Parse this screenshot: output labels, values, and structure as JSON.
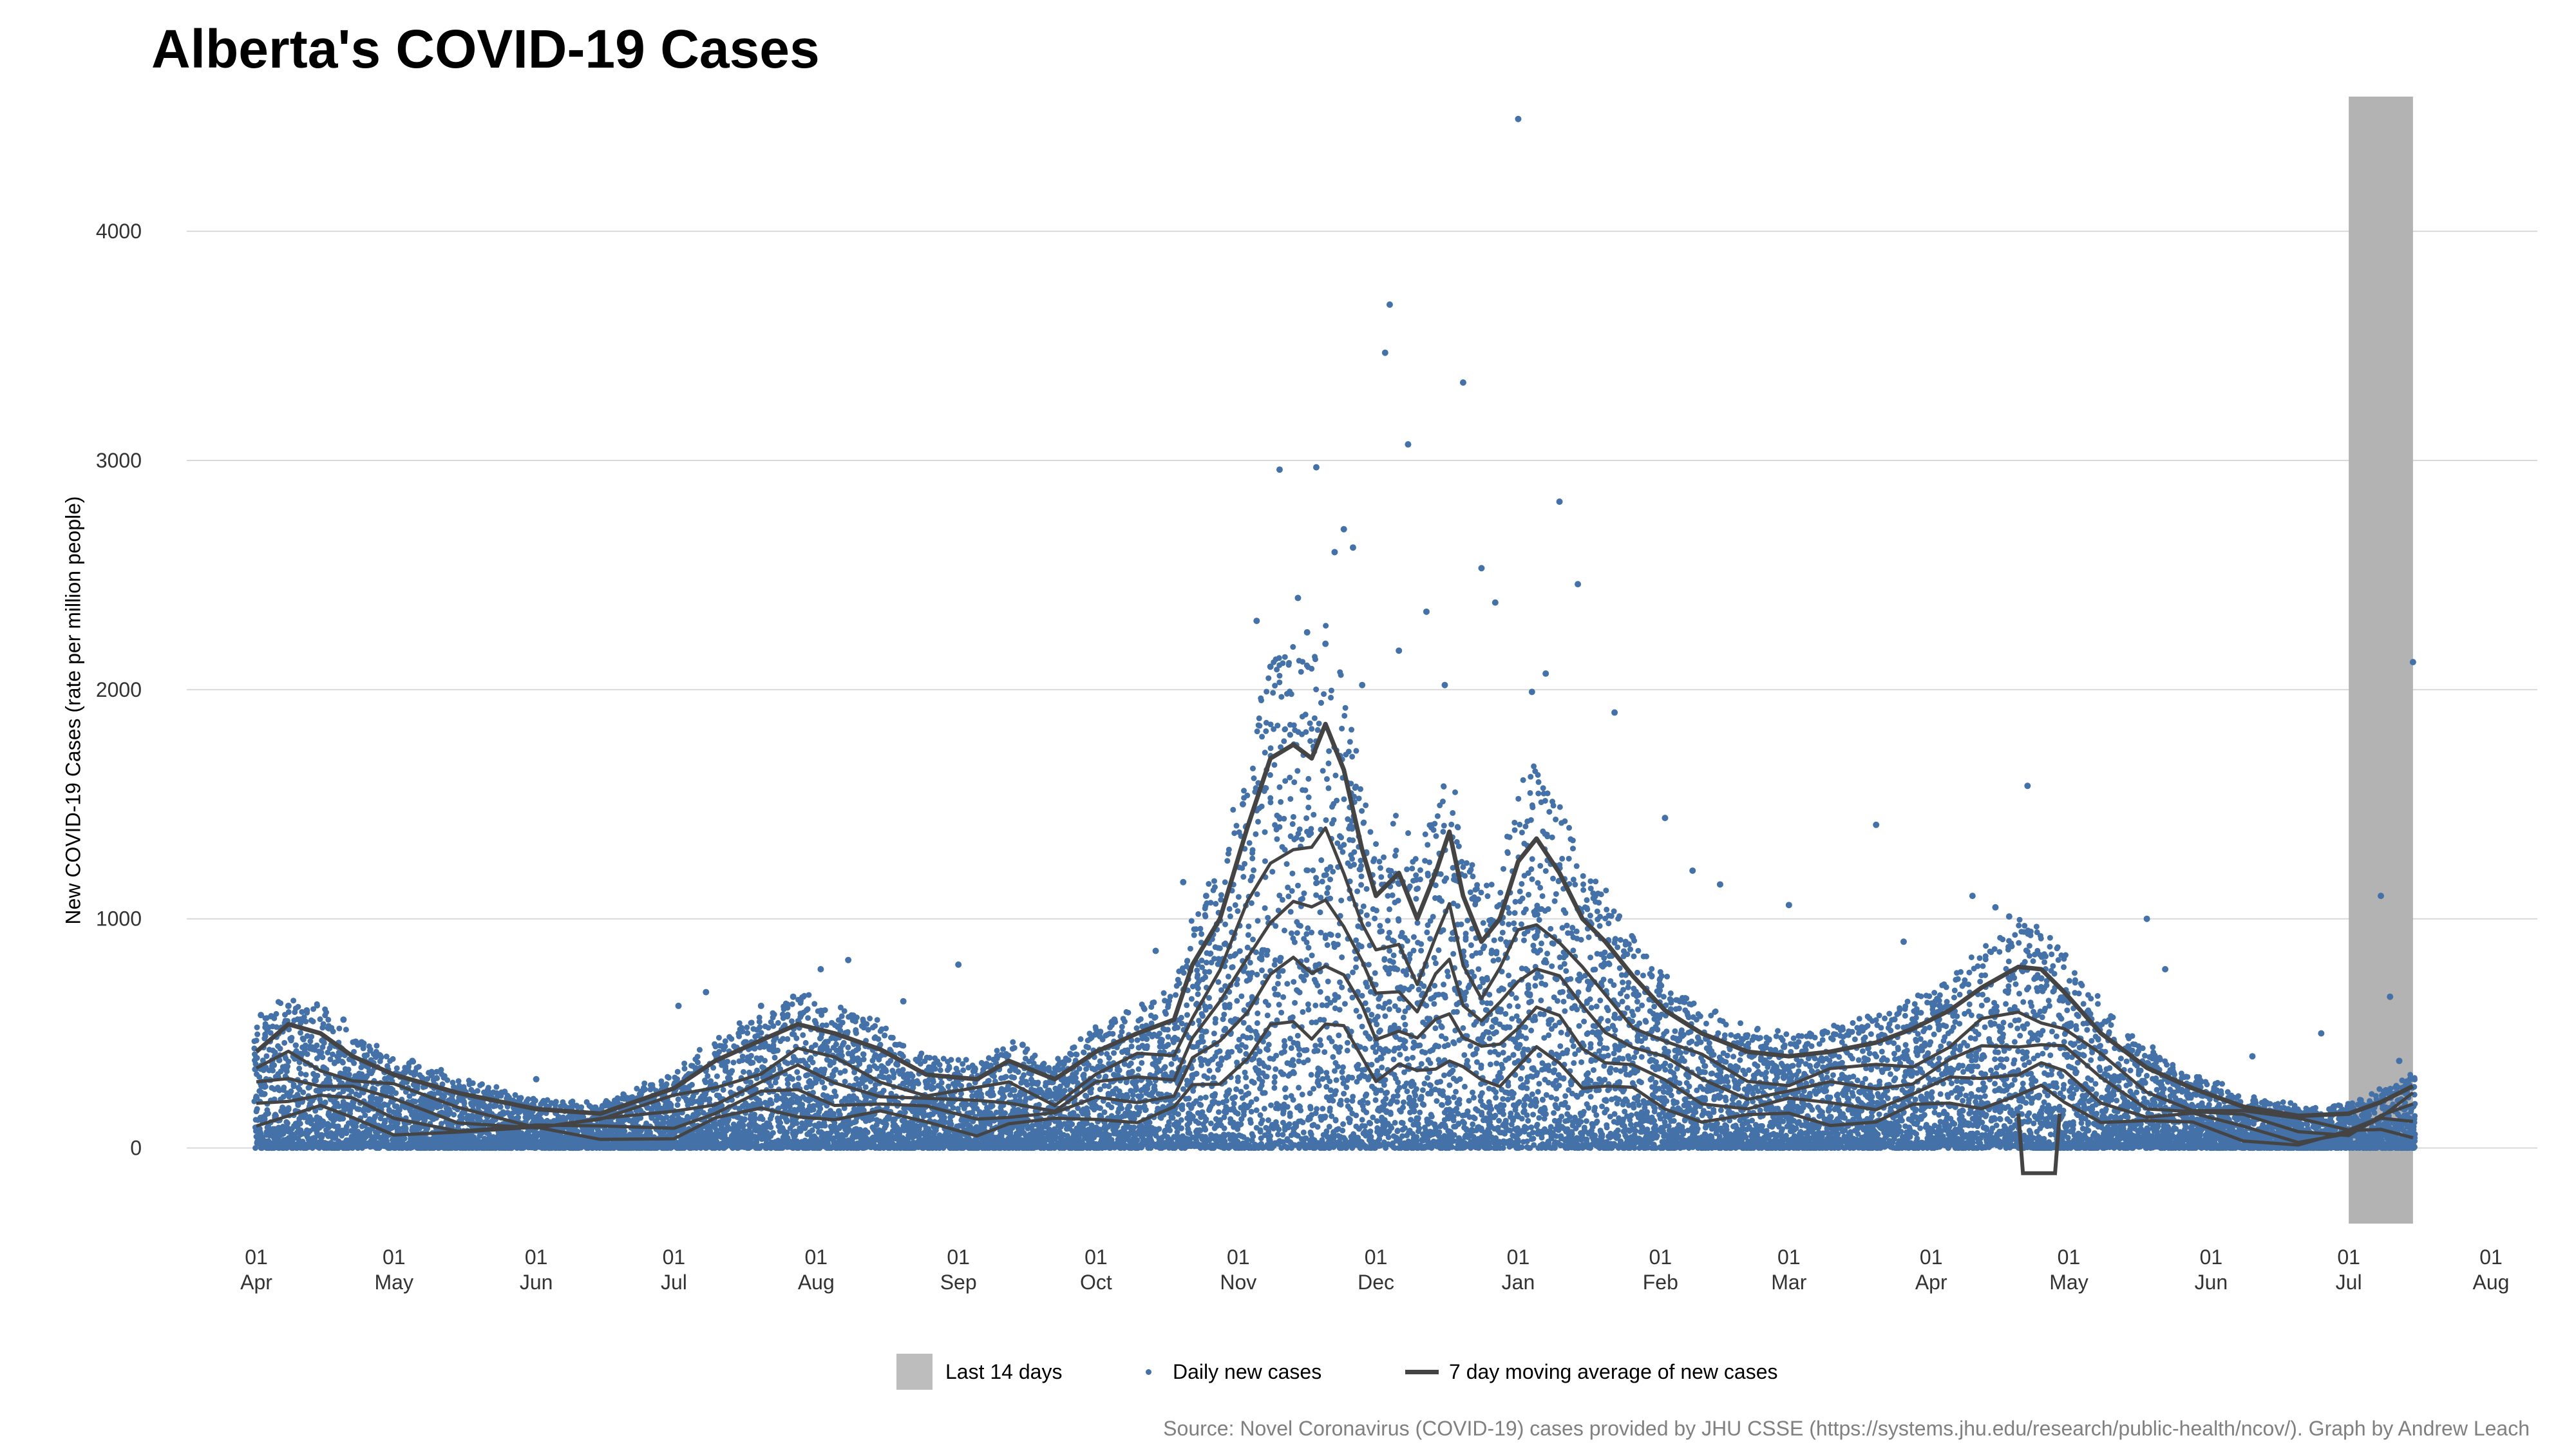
{
  "chart_data": {
    "type": "scatter",
    "title": "Alberta's COVID-19 Cases",
    "ylabel": "New COVID-19 Cases (rate per million people)",
    "xlabel": "",
    "ylim": [
      -330,
      4700
    ],
    "yticks": [
      0,
      1000,
      2000,
      3000,
      4000
    ],
    "x_start": "2020-04-01",
    "x_end": "2021-08-01",
    "xticks": [
      {
        "day": "01",
        "month": "Apr"
      },
      {
        "day": "01",
        "month": "May"
      },
      {
        "day": "01",
        "month": "Jun"
      },
      {
        "day": "01",
        "month": "Jul"
      },
      {
        "day": "01",
        "month": "Aug"
      },
      {
        "day": "01",
        "month": "Sep"
      },
      {
        "day": "01",
        "month": "Oct"
      },
      {
        "day": "01",
        "month": "Nov"
      },
      {
        "day": "01",
        "month": "Dec"
      },
      {
        "day": "01",
        "month": "Jan"
      },
      {
        "day": "01",
        "month": "Feb"
      },
      {
        "day": "01",
        "month": "Mar"
      },
      {
        "day": "01",
        "month": "Apr"
      },
      {
        "day": "01",
        "month": "May"
      },
      {
        "day": "01",
        "month": "Jun"
      },
      {
        "day": "01",
        "month": "Jul"
      },
      {
        "day": "01",
        "month": "Aug"
      }
    ],
    "last14": {
      "label": "Last 14 days",
      "start": "2021-07-01",
      "end": "2021-07-15",
      "color": "#b3b3b3"
    },
    "series": [
      {
        "name": "7 day moving average of new cases",
        "style": "line",
        "color": "#444444",
        "points": [
          [
            "2020-04-01",
            420
          ],
          [
            "2020-04-08",
            540
          ],
          [
            "2020-04-15",
            500
          ],
          [
            "2020-04-22",
            400
          ],
          [
            "2020-05-01",
            320
          ],
          [
            "2020-05-15",
            240
          ],
          [
            "2020-06-01",
            170
          ],
          [
            "2020-06-15",
            150
          ],
          [
            "2020-07-01",
            260
          ],
          [
            "2020-07-10",
            380
          ],
          [
            "2020-07-20",
            470
          ],
          [
            "2020-07-28",
            540
          ],
          [
            "2020-08-05",
            500
          ],
          [
            "2020-08-15",
            430
          ],
          [
            "2020-08-25",
            320
          ],
          [
            "2020-09-05",
            300
          ],
          [
            "2020-09-12",
            380
          ],
          [
            "2020-09-22",
            300
          ],
          [
            "2020-10-01",
            420
          ],
          [
            "2020-10-10",
            500
          ],
          [
            "2020-10-18",
            560
          ],
          [
            "2020-10-22",
            800
          ],
          [
            "2020-10-28",
            1000
          ],
          [
            "2020-11-03",
            1400
          ],
          [
            "2020-11-08",
            1700
          ],
          [
            "2020-11-13",
            1760
          ],
          [
            "2020-11-17",
            1700
          ],
          [
            "2020-11-20",
            1850
          ],
          [
            "2020-11-24",
            1650
          ],
          [
            "2020-11-28",
            1300
          ],
          [
            "2020-12-01",
            1100
          ],
          [
            "2020-12-06",
            1200
          ],
          [
            "2020-12-10",
            1000
          ],
          [
            "2020-12-14",
            1200
          ],
          [
            "2020-12-17",
            1380
          ],
          [
            "2020-12-20",
            1100
          ],
          [
            "2020-12-24",
            900
          ],
          [
            "2020-12-28",
            1000
          ],
          [
            "2021-01-01",
            1250
          ],
          [
            "2021-01-05",
            1350
          ],
          [
            "2021-01-10",
            1200
          ],
          [
            "2021-01-15",
            1000
          ],
          [
            "2021-01-20",
            900
          ],
          [
            "2021-01-26",
            750
          ],
          [
            "2021-02-02",
            600
          ],
          [
            "2021-02-10",
            500
          ],
          [
            "2021-02-20",
            420
          ],
          [
            "2021-03-01",
            400
          ],
          [
            "2021-03-10",
            420
          ],
          [
            "2021-03-20",
            460
          ],
          [
            "2021-03-28",
            520
          ],
          [
            "2021-04-05",
            600
          ],
          [
            "2021-04-12",
            700
          ],
          [
            "2021-04-20",
            790
          ],
          [
            "2021-04-25",
            780
          ],
          [
            "2021-04-30",
            680
          ],
          [
            "2021-05-08",
            500
          ],
          [
            "2021-05-18",
            350
          ],
          [
            "2021-05-28",
            260
          ],
          [
            "2021-06-08",
            180
          ],
          [
            "2021-06-20",
            140
          ],
          [
            "2021-07-01",
            150
          ],
          [
            "2021-07-08",
            200
          ],
          [
            "2021-07-15",
            270
          ]
        ]
      },
      {
        "name": "Daily new cases",
        "style": "points",
        "color": "#4472a8",
        "points": [
          [
            "2020-04-02",
            580
          ],
          [
            "2020-04-08",
            620
          ],
          [
            "2020-04-12",
            600
          ],
          [
            "2020-04-20",
            560
          ],
          [
            "2020-05-05",
            380
          ],
          [
            "2020-06-01",
            300
          ],
          [
            "2020-07-02",
            620
          ],
          [
            "2020-07-08",
            680
          ],
          [
            "2020-07-20",
            620
          ],
          [
            "2020-07-27",
            660
          ],
          [
            "2020-08-02",
            780
          ],
          [
            "2020-08-08",
            820
          ],
          [
            "2020-08-20",
            640
          ],
          [
            "2020-09-01",
            800
          ],
          [
            "2020-09-15",
            450
          ],
          [
            "2020-10-05",
            560
          ],
          [
            "2020-10-14",
            860
          ],
          [
            "2020-10-20",
            1160
          ],
          [
            "2020-10-25",
            1100
          ],
          [
            "2020-10-30",
            880
          ],
          [
            "2020-11-02",
            1500
          ],
          [
            "2020-11-05",
            2300
          ],
          [
            "2020-11-08",
            2100
          ],
          [
            "2020-11-10",
            2960
          ],
          [
            "2020-11-14",
            2400
          ],
          [
            "2020-11-16",
            2250
          ],
          [
            "2020-11-18",
            2970
          ],
          [
            "2020-11-20",
            2200
          ],
          [
            "2020-11-22",
            2600
          ],
          [
            "2020-11-24",
            2700
          ],
          [
            "2020-11-26",
            2620
          ],
          [
            "2020-11-28",
            2020
          ],
          [
            "2020-12-03",
            3470
          ],
          [
            "2020-12-04",
            3680
          ],
          [
            "2020-12-06",
            2170
          ],
          [
            "2020-12-08",
            3070
          ],
          [
            "2020-12-12",
            2340
          ],
          [
            "2020-12-16",
            2020
          ],
          [
            "2020-12-20",
            3340
          ],
          [
            "2020-12-24",
            2530
          ],
          [
            "2020-12-27",
            2380
          ],
          [
            "2021-01-01",
            4490
          ],
          [
            "2021-01-04",
            1990
          ],
          [
            "2021-01-07",
            2070
          ],
          [
            "2021-01-10",
            2820
          ],
          [
            "2021-01-14",
            2460
          ],
          [
            "2021-01-22",
            1900
          ],
          [
            "2021-02-02",
            1440
          ],
          [
            "2021-02-08",
            1210
          ],
          [
            "2021-02-14",
            1150
          ],
          [
            "2021-03-01",
            1060
          ],
          [
            "2021-03-20",
            1410
          ],
          [
            "2021-03-26",
            900
          ],
          [
            "2021-04-10",
            1100
          ],
          [
            "2021-04-15",
            1050
          ],
          [
            "2021-04-18",
            1010
          ],
          [
            "2021-04-22",
            1580
          ],
          [
            "2021-04-25",
            740
          ],
          [
            "2021-05-18",
            1000
          ],
          [
            "2021-05-22",
            780
          ],
          [
            "2021-06-10",
            400
          ],
          [
            "2021-06-25",
            500
          ],
          [
            "2021-07-08",
            1100
          ],
          [
            "2021-07-10",
            660
          ],
          [
            "2021-07-12",
            380
          ],
          [
            "2021-07-15",
            2120
          ]
        ]
      }
    ],
    "grid": "horizontal",
    "legend_position": "bottom"
  },
  "legend": {
    "last14_label": "Last 14 days",
    "daily_label": "Daily new cases",
    "avg_label": "7 day moving average of new cases"
  },
  "caption": "Source: Novel Coronavirus (COVID-19) cases provided by JHU CSSE (https://systems.jhu.edu/research/public-health/ncov/). Graph by Andrew Leach",
  "colors": {
    "points": "#4472a8",
    "line": "#444444",
    "shade": "#b3b3b3",
    "grid": "#d9d9d9"
  }
}
